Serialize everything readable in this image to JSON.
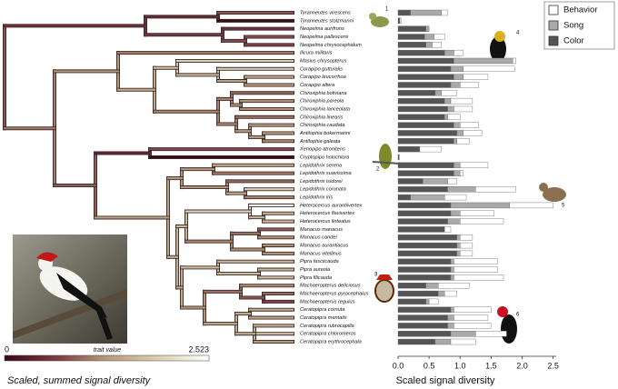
{
  "chart_data": {
    "type": "bar",
    "orientation": "horizontal",
    "stacked": true,
    "xlabel": "Scaled signal diversity",
    "categories": [
      "Tyranneutes virescens",
      "Tyranneutes stolzmanni",
      "Neopelma aurifrons",
      "Neopelma pallescens",
      "Neopelma chrysocephalum",
      "Ilicura militaris",
      "Masius chrysopterus",
      "Corapipo gutturalis",
      "Corapipo leucorrhoa",
      "Corapipo altera",
      "Chiroxiphia boliviana",
      "Chiroxiphia pareola",
      "Chiroxiphia lanceolata",
      "Chiroxiphia linearis",
      "Chiroxiphia caudata",
      "Antilophia bokermanni",
      "Antilophia galeata",
      "Xenopipo atronitens",
      "Cryptopipo holochlora",
      "Lepidothrix serena",
      "Lepidothrix suavissima",
      "Lepidothrix isidorei",
      "Lepidothrix coronata",
      "Lepidothrix iris",
      "Heterocercus aurantiivertex",
      "Heterocercus flavivertex",
      "Heterocercus linteatus",
      "Manacus manacus",
      "Manacus candei",
      "Manacus aurantiacus",
      "Manacus vitellinus",
      "Pipra fasciicauda",
      "Pipra aureola",
      "Pipra filicauda",
      "Machaeropterus deliciosus",
      "Machaeropterus pyrocephalus",
      "Machaeropterus regulus",
      "Ceratopipra cornuta",
      "Ceratopipra mentalis",
      "Ceratopipra rubrocapilla",
      "Ceratopipra chloromeros",
      "Ceratopipra erythrocephala"
    ],
    "series": [
      {
        "name": "Color",
        "color": "#555555",
        "values": [
          0.2,
          0.03,
          0.45,
          0.43,
          0.45,
          0.75,
          0.9,
          0.85,
          0.9,
          0.85,
          0.6,
          0.75,
          0.8,
          0.75,
          0.9,
          0.95,
          0.9,
          0.35,
          0.02,
          0.9,
          0.9,
          0.4,
          0.8,
          0.2,
          0.85,
          0.85,
          0.8,
          0.75,
          0.95,
          0.95,
          0.95,
          0.85,
          0.85,
          0.85,
          0.45,
          0.65,
          0.45,
          0.85,
          0.8,
          0.8,
          0.85,
          0.6
        ]
      },
      {
        "name": "Song",
        "color": "#a9a9a9",
        "values": [
          0.5,
          0,
          0.05,
          0.15,
          0.1,
          0.15,
          0.95,
          0.2,
          0.15,
          0.15,
          0.1,
          0.1,
          0.1,
          0.05,
          0.1,
          0.1,
          0.05,
          0,
          0,
          0.1,
          0.1,
          0.4,
          0.45,
          0.55,
          0.95,
          0.15,
          0.2,
          0,
          0.05,
          0.05,
          0.05,
          0.05,
          0.05,
          0.05,
          0.2,
          0.1,
          0.05,
          0.05,
          0.1,
          0.1,
          0.4,
          0.25
        ]
      },
      {
        "name": "Behavior",
        "color": "#ffffff",
        "values": [
          0.1,
          0.02,
          0,
          0.17,
          0.15,
          0.15,
          0.05,
          0.83,
          0.4,
          0.3,
          0.25,
          0.35,
          0.3,
          0.2,
          0.3,
          0.3,
          0.2,
          0.35,
          0,
          0.45,
          0.05,
          0.15,
          0.65,
          0.35,
          0.7,
          0.55,
          0.7,
          0.1,
          0.2,
          0.2,
          0.2,
          0.7,
          0.7,
          0.8,
          0.5,
          0.2,
          0.15,
          0.6,
          0.55,
          0.6,
          0.5,
          0.4
        ]
      }
    ],
    "xlim": [
      0,
      2.55
    ],
    "xticks": [
      {
        "value": 0,
        "label": "0.0"
      },
      0.5,
      {
        "value": 1,
        "label": "1.0"
      },
      1.5,
      {
        "value": 2,
        "label": "2.0"
      },
      2.5
    ],
    "legend": "upper right",
    "colorbar": {
      "title": "Scaled, summed signal diversity",
      "label": "trait value",
      "ticks": [
        0,
        2.523
      ],
      "colormap": [
        "#3a0615",
        "#7a3a42",
        "#b89a78",
        "#d9cfb0",
        "#ffffff"
      ]
    },
    "annotations": [
      "1",
      "2",
      "3",
      "4",
      "5",
      "6"
    ]
  }
}
